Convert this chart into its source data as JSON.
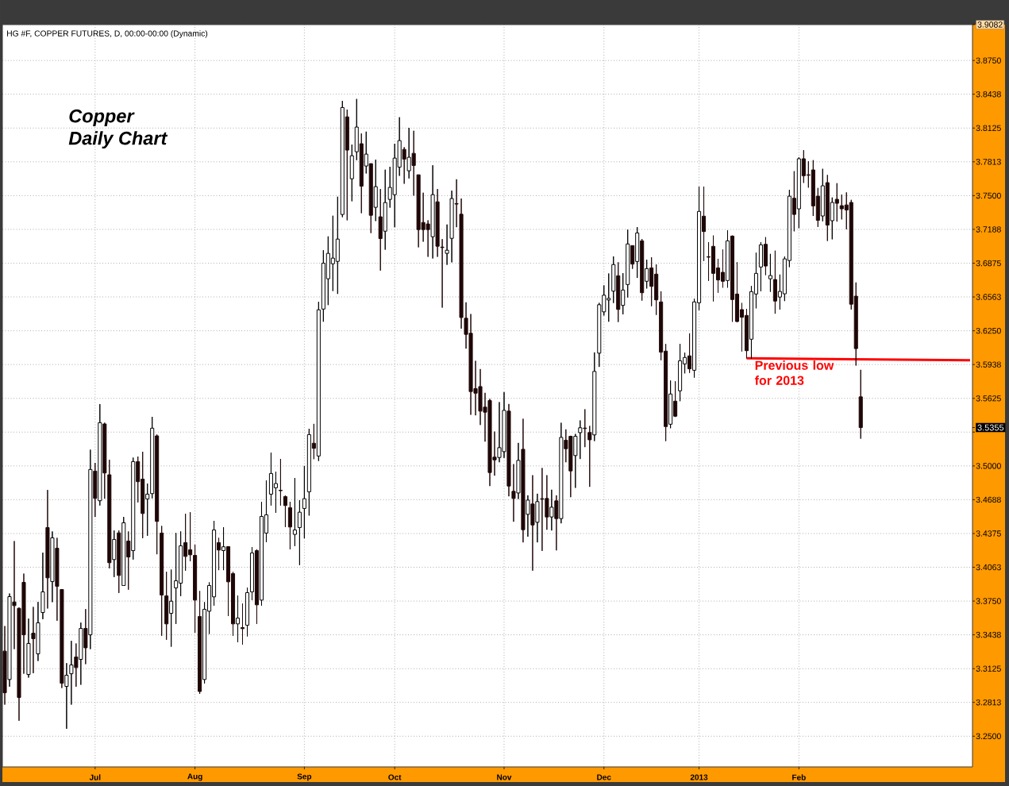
{
  "chart_data": {
    "type": "candlestick",
    "title": "HG #F, COPPER FUTURES, D, 00:00-00:00 (Dynamic)",
    "categories": [
      null,
      null,
      null,
      null,
      null,
      null,
      null,
      null,
      null,
      null,
      null,
      null,
      null,
      null,
      null,
      null,
      null,
      null,
      null,
      "Jul",
      null,
      null,
      null,
      null,
      null,
      null,
      null,
      null,
      null,
      null,
      null,
      null,
      null,
      null,
      null,
      null,
      null,
      null,
      null,
      null,
      "Aug",
      null,
      null,
      null,
      null,
      null,
      null,
      null,
      null,
      null,
      null,
      null,
      null,
      null,
      null,
      null,
      null,
      null,
      null,
      null,
      null,
      null,
      null,
      "Sep",
      null,
      null,
      null,
      null,
      null,
      null,
      null,
      null,
      null,
      null,
      null,
      null,
      null,
      null,
      null,
      null,
      null,
      null,
      "Oct",
      null,
      null,
      null,
      null,
      null,
      null,
      null,
      null,
      null,
      null,
      null,
      null,
      null,
      null,
      null,
      null,
      null,
      null,
      null,
      null,
      null,
      null,
      "Nov",
      null,
      null,
      null,
      null,
      null,
      null,
      null,
      null,
      null,
      null,
      null,
      null,
      null,
      null,
      null,
      null,
      null,
      null,
      null,
      null,
      "Dec",
      null,
      null,
      null,
      null,
      null,
      null,
      null,
      null,
      null,
      null,
      null,
      null,
      null,
      null,
      null,
      null,
      null,
      null,
      null,
      "2013",
      null,
      null,
      null,
      null,
      null,
      null,
      null,
      null,
      null,
      null,
      null,
      null,
      null,
      null,
      null,
      null,
      null,
      null,
      null,
      null,
      "Feb",
      null,
      null,
      null,
      null,
      null,
      null,
      null,
      null,
      null,
      null,
      null,
      null,
      null,
      null,
      null,
      null,
      null,
      null,
      null,
      null,
      null,
      null,
      null,
      null,
      null,
      null,
      null,
      null,
      null,
      null,
      null,
      null,
      null,
      null,
      null,
      null
    ],
    "ohlc": [
      [
        3.3287,
        3.3519,
        3.2792,
        3.2902
      ],
      [
        3.3025,
        3.382,
        3.2958,
        3.3791
      ],
      [
        3.3742,
        3.4305,
        3.3306,
        3.3708
      ],
      [
        3.3683,
        3.3691,
        3.2643,
        3.2858
      ],
      [
        3.3923,
        3.4004,
        3.3078,
        3.3438
      ],
      [
        3.3071,
        3.3588,
        3.3042,
        3.3358
      ],
      [
        3.3453,
        3.3696,
        3.3083,
        3.3402
      ],
      [
        3.3262,
        3.3742,
        3.3196,
        3.3549
      ],
      [
        3.3644,
        3.4198,
        3.3583,
        3.3835
      ],
      [
        3.443,
        3.4778,
        3.3681,
        3.3965
      ],
      [
        3.3931,
        3.4394,
        3.374,
        3.4335
      ],
      [
        3.4239,
        3.4335,
        3.3568,
        3.3887
      ],
      [
        3.3857,
        3.3857,
        3.2946,
        3.299
      ],
      [
        3.2961,
        3.3176,
        3.2569,
        3.3064
      ],
      [
        3.3078,
        3.3382,
        3.2792,
        3.3159
      ],
      [
        3.3233,
        3.3358,
        3.2958,
        3.3135
      ],
      [
        3.3211,
        3.3551,
        3.2976,
        3.3497
      ],
      [
        3.3497,
        3.3676,
        3.3167,
        3.3318
      ],
      [
        3.3438,
        3.515,
        3.3306,
        3.4967
      ],
      [
        3.4952,
        3.5028,
        3.4528,
        3.47
      ],
      [
        3.4678,
        3.5572,
        3.4634,
        3.54
      ],
      [
        3.5388,
        3.54,
        3.4697,
        3.4935
      ],
      [
        3.4918,
        3.5057,
        3.4053,
        3.4105
      ],
      [
        3.4134,
        3.4403,
        3.3972,
        3.432
      ],
      [
        3.4381,
        3.4403,
        3.3825,
        3.3987
      ],
      [
        3.3894,
        3.4528,
        3.3894,
        3.4474
      ],
      [
        3.4305,
        3.4394,
        3.3855,
        3.4158
      ],
      [
        3.4217,
        3.5077,
        3.4134,
        3.504
      ],
      [
        3.504,
        3.5087,
        3.4663,
        3.4854
      ],
      [
        3.4878,
        3.5131,
        3.4332,
        3.456
      ],
      [
        3.4695,
        3.4837,
        3.4354,
        3.4739
      ],
      [
        3.4744,
        3.5454,
        3.47,
        3.5349
      ],
      [
        3.5278,
        3.529,
        3.4183,
        3.4487
      ],
      [
        3.4379,
        3.4445,
        3.3429,
        3.3806
      ],
      [
        3.3798,
        3.4021,
        3.3392,
        3.3539
      ],
      [
        3.3637,
        3.4041,
        3.3328,
        3.3749
      ],
      [
        3.3872,
        3.4379,
        3.3539,
        3.3938
      ],
      [
        3.3916,
        3.4394,
        3.3796,
        3.4261
      ],
      [
        3.4291,
        3.4558,
        3.4031,
        3.4163
      ],
      [
        3.4225,
        3.4572,
        3.4119,
        3.4178
      ],
      [
        3.4173,
        3.4271,
        3.3458,
        3.3759
      ],
      [
        3.3607,
        3.3843,
        3.2892,
        3.2914
      ],
      [
        3.3025,
        3.374,
        3.2988,
        3.3674
      ],
      [
        3.3656,
        3.3923,
        3.3446,
        3.3894
      ],
      [
        3.3789,
        3.4492,
        3.3708,
        3.4408
      ],
      [
        3.4291,
        3.4335,
        3.4036,
        3.4222
      ],
      [
        3.4217,
        3.4433,
        3.4036,
        3.4252
      ],
      [
        3.4254,
        3.4254,
        3.3612,
        3.3928
      ],
      [
        3.4004,
        3.4021,
        3.3429,
        3.3539
      ],
      [
        3.3539,
        3.3801,
        3.337,
        3.3593
      ],
      [
        3.3505,
        3.3727,
        3.3348,
        3.3495
      ],
      [
        3.3527,
        3.3874,
        3.3424,
        3.3828
      ],
      [
        3.3835,
        3.4249,
        3.3759,
        3.4195
      ],
      [
        3.4217,
        3.4229,
        3.3539,
        3.3715
      ],
      [
        3.3759,
        3.4668,
        3.3708,
        3.4533
      ],
      [
        3.4379,
        3.4866,
        3.4296,
        3.4548
      ],
      [
        3.4739,
        3.5123,
        3.4634,
        3.493
      ],
      [
        3.4798,
        3.4947,
        3.4567,
        3.4837
      ],
      [
        3.4775,
        3.5065,
        3.4634,
        3.4771
      ],
      [
        3.4717,
        3.4727,
        3.4435,
        3.4634
      ],
      [
        3.4614,
        3.4668,
        3.4229,
        3.4435
      ],
      [
        3.4367,
        3.4888,
        3.4259,
        3.4408
      ],
      [
        3.443,
        3.4683,
        3.4083,
        3.4572
      ],
      [
        3.4607,
        3.5,
        3.433,
        3.4697
      ],
      [
        3.4761,
        3.5344,
        3.4541,
        3.529
      ],
      [
        3.521,
        3.5389,
        3.5063,
        3.5163
      ],
      [
        3.5092,
        3.6518,
        3.5046,
        3.6444
      ],
      [
        3.6451,
        3.6995,
        3.6334,
        3.6875
      ],
      [
        3.6731,
        3.7123,
        3.6488,
        3.6966
      ],
      [
        3.687,
        3.7314,
        3.6618,
        3.6922
      ],
      [
        3.6892,
        3.749,
        3.6591,
        3.7098
      ],
      [
        3.7326,
        3.8376,
        3.7301,
        3.8315
      ],
      [
        3.8229,
        3.8296,
        3.7272,
        3.7921
      ],
      [
        3.7656,
        3.7972,
        3.7448,
        3.7869
      ],
      [
        3.7906,
        3.8394,
        3.7828,
        3.8134
      ],
      [
        3.798,
        3.8075,
        3.7338,
        3.7588
      ],
      [
        3.7774,
        3.8092,
        3.7705,
        3.7884
      ],
      [
        3.7796,
        3.7796,
        3.7154,
        3.7318
      ],
      [
        3.7392,
        3.7833,
        3.7265,
        3.7583
      ],
      [
        3.7304,
        3.7561,
        3.6807,
        3.7103
      ],
      [
        3.7171,
        3.774,
        3.7,
        3.7436
      ],
      [
        3.7465,
        3.7767,
        3.7389,
        3.7576
      ],
      [
        3.7509,
        3.798,
        3.7208,
        3.7847
      ],
      [
        3.7764,
        3.8225,
        3.7683,
        3.8009
      ],
      [
        3.7928,
        3.7948,
        3.761,
        3.7838
      ],
      [
        3.773,
        3.8127,
        3.7659,
        3.7855
      ],
      [
        3.7891,
        3.81,
        3.75,
        3.7779
      ],
      [
        3.7693,
        3.7693,
        3.7022,
        3.7186
      ],
      [
        3.7252,
        3.7527,
        3.7074,
        3.7186
      ],
      [
        3.7238,
        3.7272,
        3.6934,
        3.7186
      ],
      [
        3.712,
        3.7781,
        3.6919,
        3.7509
      ],
      [
        3.7443,
        3.7561,
        3.6934,
        3.7032
      ],
      [
        3.7024,
        3.7098,
        3.6464,
        3.702
      ],
      [
        3.6966,
        3.7233,
        3.686,
        3.6995
      ],
      [
        3.7105,
        3.7546,
        3.6883,
        3.7473
      ],
      [
        3.7426,
        3.7651,
        3.7208,
        3.7422
      ],
      [
        3.7328,
        3.7473,
        3.627,
        3.6373
      ],
      [
        3.6366,
        3.6513,
        3.6085,
        3.6217
      ],
      [
        3.6227,
        3.6405,
        3.5473,
        3.5688
      ],
      [
        3.5715,
        3.5972,
        3.5468,
        3.5673
      ],
      [
        3.5734,
        3.5896,
        3.5379,
        3.5507
      ],
      [
        3.5544,
        3.5676,
        3.5225,
        3.5497
      ],
      [
        3.5605,
        3.562,
        3.4814,
        3.4939
      ],
      [
        3.5081,
        3.5318,
        3.491,
        3.5056
      ],
      [
        3.5078,
        3.559,
        3.5034,
        3.5169
      ],
      [
        3.5132,
        3.5683,
        3.5074,
        3.5514
      ],
      [
        3.5507,
        3.5573,
        3.4719,
        3.4814
      ],
      [
        3.4765,
        3.5017,
        3.4484,
        3.4699
      ],
      [
        3.475,
        3.5213,
        3.4694,
        3.5051
      ],
      [
        3.5154,
        3.5436,
        3.4293,
        3.441
      ],
      [
        3.4552,
        3.4728,
        3.4346,
        3.4684
      ],
      [
        3.4648,
        3.4914,
        3.4031,
        3.4454
      ],
      [
        3.4479,
        3.4743,
        3.4293,
        3.467
      ],
      [
        3.4697,
        3.4981,
        3.4214,
        3.4692
      ],
      [
        3.4699,
        3.4914,
        3.441,
        3.4528
      ],
      [
        3.4528,
        3.478,
        3.4403,
        3.4618
      ],
      [
        3.4677,
        3.4728,
        3.4219,
        3.4513
      ],
      [
        3.4513,
        3.5399,
        3.4469,
        3.5264
      ],
      [
        3.5238,
        3.5338,
        3.5034,
        3.5159
      ],
      [
        3.5274,
        3.5279,
        3.4711,
        3.4954
      ],
      [
        3.5096,
        3.5296,
        3.4797,
        3.5274
      ],
      [
        3.5308,
        3.5421,
        3.5064,
        3.5353
      ],
      [
        3.535,
        3.5524,
        3.5174,
        3.5346
      ],
      [
        3.5309,
        3.537,
        3.4807,
        3.5242
      ],
      [
        3.5287,
        3.605,
        3.523,
        3.5874
      ],
      [
        3.6043,
        3.6508,
        3.5916,
        3.6491
      ],
      [
        3.6425,
        3.667,
        3.6391,
        3.6579
      ],
      [
        3.6535,
        3.678,
        3.6334,
        3.655
      ],
      [
        3.6617,
        3.6938,
        3.6507,
        3.6862
      ],
      [
        3.6759,
        3.6884,
        3.6331,
        3.6448
      ],
      [
        3.6485,
        3.6783,
        3.6402,
        3.6627
      ],
      [
        3.6678,
        3.7185,
        3.6558,
        3.7053
      ],
      [
        3.7038,
        3.7038,
        3.6823,
        3.6867
      ],
      [
        3.6891,
        3.7209,
        3.6739,
        3.7155
      ],
      [
        3.7082,
        3.7099,
        3.6529,
        3.6602
      ],
      [
        3.6708,
        3.6908,
        3.6641,
        3.6825
      ],
      [
        3.6832,
        3.693,
        3.6478,
        3.6661
      ],
      [
        3.6774,
        3.6864,
        3.6397,
        3.6536
      ],
      [
        3.6517,
        3.6615,
        3.5978,
        3.6052
      ],
      [
        3.6062,
        3.6128,
        3.523,
        3.5364
      ],
      [
        3.5386,
        3.579,
        3.5349,
        3.5665
      ],
      [
        3.5599,
        3.5783,
        3.5453,
        3.546
      ],
      [
        3.5695,
        3.6128,
        3.5599,
        3.5973
      ],
      [
        3.5944,
        3.6047,
        3.5856,
        3.6003
      ],
      [
        3.6018,
        3.6226,
        3.5861,
        3.5898
      ],
      [
        3.5885,
        3.6546,
        3.5817,
        3.6517
      ],
      [
        3.6509,
        3.7584,
        3.6441,
        3.7354
      ],
      [
        3.731,
        3.7584,
        3.6896,
        3.7168
      ],
      [
        3.6935,
        3.707,
        3.6712,
        3.6931
      ],
      [
        3.7031,
        3.7131,
        3.6522,
        3.6781
      ],
      [
        3.6832,
        3.6916,
        3.6602,
        3.672
      ],
      [
        3.6791,
        3.7001,
        3.6649,
        3.6708
      ],
      [
        3.6715,
        3.718,
        3.6649,
        3.7082
      ],
      [
        3.7126,
        3.7131,
        3.6333,
        3.6539
      ],
      [
        3.659,
        3.6884,
        3.6328,
        3.6336
      ],
      [
        3.6446,
        3.6507,
        3.6059,
        3.6375
      ],
      [
        3.6392,
        3.6453,
        3.5995,
        3.6066
      ],
      [
        3.6172,
        3.6664,
        3.5993,
        3.6612
      ],
      [
        3.659,
        3.6972,
        3.6458,
        3.6781
      ],
      [
        3.684,
        3.707,
        3.6616,
        3.7045
      ],
      [
        3.705,
        3.7116,
        3.6765,
        3.6849
      ],
      [
        3.6731,
        3.6961,
        3.6611,
        3.6761
      ],
      [
        3.6724,
        3.6991,
        3.6408,
        3.6525
      ],
      [
        3.6562,
        3.677,
        3.6447,
        3.6614
      ],
      [
        3.6592,
        3.6937,
        3.6525,
        3.6915
      ],
      [
        3.69,
        3.7554,
        3.6839,
        3.7495
      ],
      [
        3.7476,
        3.7726,
        3.717,
        3.7326
      ],
      [
        3.7378,
        3.7855,
        3.7199,
        3.7841
      ],
      [
        3.7841,
        3.7921,
        3.7618,
        3.7684
      ],
      [
        3.7693,
        3.7819,
        3.7574,
        3.7689
      ],
      [
        3.7738,
        3.7828,
        3.7312,
        3.7405
      ],
      [
        3.7495,
        3.7571,
        3.7211,
        3.7272
      ],
      [
        3.7312,
        3.7748,
        3.7263,
        3.7591
      ],
      [
        3.762,
        3.7691,
        3.7081,
        3.7228
      ],
      [
        3.7268,
        3.7483,
        3.7096,
        3.7437
      ],
      [
        3.7466,
        3.7615,
        3.726,
        3.7429
      ],
      [
        3.7407,
        3.751,
        3.728,
        3.7378
      ],
      [
        3.7414,
        3.753,
        3.7189,
        3.7368
      ],
      [
        3.7437,
        3.7461,
        3.6447,
        3.6496
      ],
      [
        3.657,
        3.6697,
        3.5928,
        3.6085
      ],
      [
        3.5639,
        3.5889,
        3.5252,
        3.5355
      ],
      null,
      null,
      null,
      null,
      null,
      null,
      null,
      null,
      null,
      null,
      null,
      null,
      null,
      null,
      null,
      null,
      null,
      null,
      null,
      null,
      null,
      null,
      null
    ],
    "series": [
      {
        "type": "line",
        "name": "Previous low for 2013",
        "color": "#ff0000",
        "values": [
          null,
          null,
          null,
          null,
          null,
          null,
          null,
          null,
          null,
          null,
          null,
          null,
          null,
          null,
          null,
          null,
          null,
          null,
          null,
          null,
          null,
          null,
          null,
          null,
          null,
          null,
          null,
          null,
          null,
          null,
          null,
          null,
          null,
          null,
          null,
          null,
          null,
          null,
          null,
          null,
          null,
          null,
          null,
          null,
          null,
          null,
          null,
          null,
          null,
          null,
          null,
          null,
          null,
          null,
          null,
          null,
          null,
          null,
          null,
          null,
          null,
          null,
          null,
          null,
          null,
          null,
          null,
          null,
          null,
          null,
          null,
          null,
          null,
          null,
          null,
          null,
          null,
          null,
          null,
          null,
          null,
          null,
          null,
          null,
          null,
          null,
          null,
          null,
          null,
          null,
          null,
          null,
          null,
          null,
          null,
          null,
          null,
          null,
          null,
          null,
          null,
          null,
          null,
          null,
          null,
          null,
          null,
          null,
          null,
          null,
          null,
          null,
          null,
          null,
          null,
          null,
          null,
          null,
          null,
          null,
          null,
          null,
          null,
          null,
          null,
          null,
          null,
          null,
          null,
          null,
          null,
          null,
          null,
          null,
          null,
          null,
          null,
          null,
          null,
          null,
          null,
          null,
          null,
          null,
          null,
          null,
          null,
          null,
          null,
          null,
          null,
          null,
          null,
          null,
          null,
          null,
          3.5995,
          null,
          null,
          null,
          null,
          null,
          null,
          null,
          null,
          null,
          null,
          null,
          null,
          null,
          null,
          null,
          null,
          null,
          null,
          null,
          null,
          null,
          null,
          null,
          null,
          null,
          null,
          null,
          null,
          null,
          null,
          null,
          null,
          null,
          null,
          null,
          null,
          null,
          null,
          null,
          null,
          null,
          null,
          null,
          null,
          null,
          null,
          3.5978
        ]
      }
    ],
    "ylim": [
      3.2216,
      3.9082
    ],
    "yticks": [
      {
        "value": 3.25,
        "label": "3.2500"
      },
      {
        "value": 3.2813,
        "label": "3.2813"
      },
      {
        "value": 3.3125,
        "label": "3.3125"
      },
      {
        "value": 3.3438,
        "label": "3.3438"
      },
      {
        "value": 3.375,
        "label": "3.3750"
      },
      {
        "value": 3.4063,
        "label": "3.4063"
      },
      {
        "value": 3.4375,
        "label": "3.4375"
      },
      {
        "value": 3.4688,
        "label": "3.4688"
      },
      {
        "value": 3.5,
        "label": "3.5000"
      },
      {
        "value": 3.5313,
        "label": null
      },
      {
        "value": 3.5355,
        "label": "3.5355"
      },
      {
        "value": 3.5625,
        "label": "3.5625"
      },
      {
        "value": 3.5938,
        "label": "3.5938"
      },
      {
        "value": 3.625,
        "label": "3.6250"
      },
      {
        "value": 3.6563,
        "label": "3.6563"
      },
      {
        "value": 3.6875,
        "label": "3.6875"
      },
      {
        "value": 3.7188,
        "label": "3.7188"
      },
      {
        "value": 3.75,
        "label": "3.7500"
      },
      {
        "value": 3.7813,
        "label": "3.7813"
      },
      {
        "value": 3.8125,
        "label": "3.8125"
      },
      {
        "value": 3.8438,
        "label": "3.8438"
      },
      {
        "value": 3.875,
        "label": "3.8750"
      },
      {
        "value": 3.9082,
        "label": "3.9082"
      }
    ],
    "grid": true,
    "annotations": [
      "Copper",
      "Daily Chart"
    ]
  }
}
